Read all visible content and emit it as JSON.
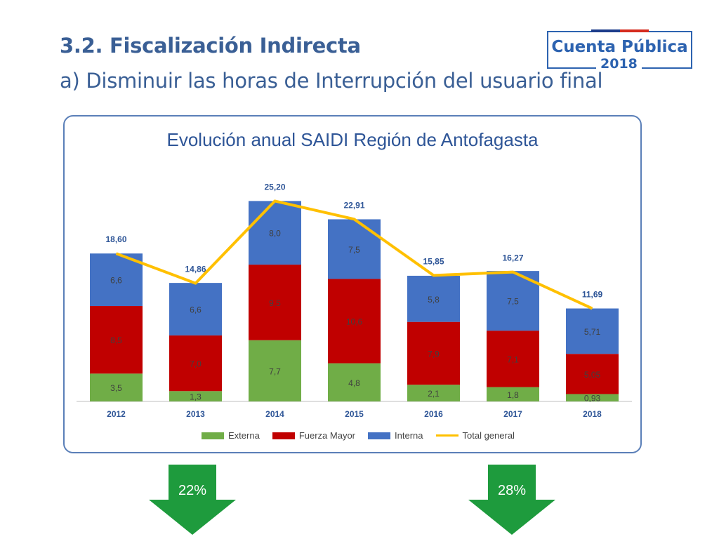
{
  "header": {
    "title": "3.2. Fiscalización Indirecta",
    "subtitle": "a) Disminuir las horas de Interrupción del usuario final"
  },
  "logo": {
    "text": "Cuenta Pública",
    "year": "2018"
  },
  "colors": {
    "externa": "#70ad47",
    "fuerza_mayor": "#c00000",
    "interna": "#4472c4",
    "total": "#ffc000",
    "arrow": "#1e9b3d"
  },
  "chart_data": {
    "type": "bar",
    "stacked": true,
    "title": "Evolución anual SAIDI Región de Antofagasta",
    "categories": [
      "2012",
      "2013",
      "2014",
      "2015",
      "2016",
      "2017",
      "2018"
    ],
    "series": [
      {
        "name": "Externa",
        "values": [
          3.5,
          1.3,
          7.7,
          4.8,
          2.1,
          1.8,
          0.93
        ],
        "labels": [
          "3,5",
          "1,3",
          "7,7",
          "4,8",
          "2,1",
          "1,8",
          "0,93"
        ]
      },
      {
        "name": "Fuerza Mayor",
        "values": [
          8.5,
          7.0,
          9.5,
          10.6,
          7.9,
          7.1,
          5.05
        ],
        "labels": [
          "8,5",
          "7,0",
          "9,5",
          "10,6",
          "7,9",
          "7,1",
          "5,05"
        ]
      },
      {
        "name": "Interna",
        "values": [
          6.6,
          6.6,
          8.0,
          7.5,
          5.8,
          7.5,
          5.71
        ],
        "labels": [
          "6,6",
          "6,6",
          "8,0",
          "7,5",
          "5,8",
          "7,5",
          "5,71"
        ]
      }
    ],
    "line": {
      "name": "Total general",
      "values": [
        18.6,
        14.86,
        25.2,
        22.91,
        15.85,
        16.27,
        11.69
      ],
      "labels": [
        "18,60",
        "14,86",
        "25,20",
        "22,91",
        "15,85",
        "16,27",
        "11,69"
      ]
    },
    "ylim": [
      0,
      27
    ],
    "grid": false,
    "legend_position": "bottom"
  },
  "arrows": [
    {
      "label": "22%"
    },
    {
      "label": "28%"
    }
  ]
}
